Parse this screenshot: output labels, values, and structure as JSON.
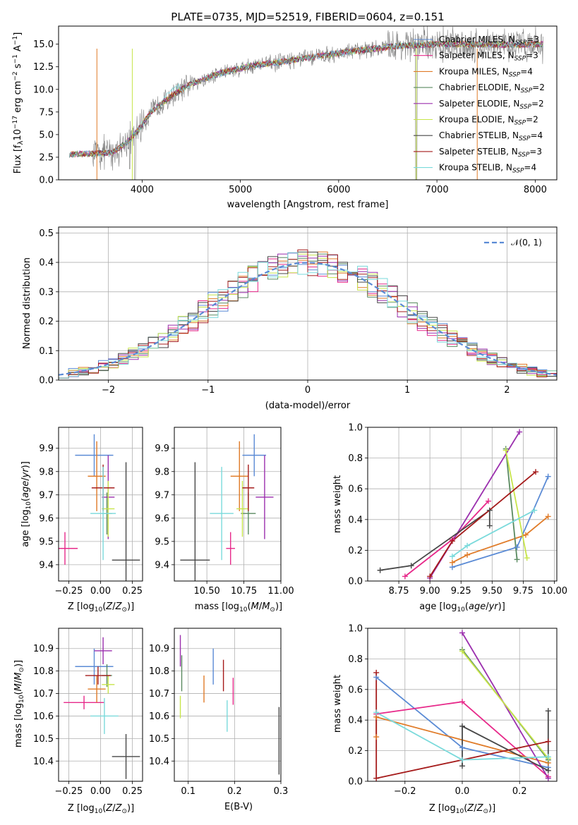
{
  "colors": {
    "Chabrier MILES": "#5b8bd5",
    "Salpeter MILES": "#e7298a",
    "Kroupa MILES": "#e07b28",
    "Chabrier ELODIE": "#5a8a60",
    "Salpeter ELODIE": "#9b2fae",
    "Kroupa ELODIE": "#c7e54a",
    "Chabrier STELIB": "#474747",
    "Salpeter STELIB": "#a51b1b",
    "Kroupa STELIB": "#7adadb",
    "normal": "#5b8bd5"
  },
  "chart_data": [
    {
      "id": "spectrum",
      "type": "line",
      "title": "PLATE=0735, MJD=52519, FIBERID=0604, z=0.151",
      "xlabel": "wavelength [Angstrom, rest frame]",
      "ylabel": "Flux [f_λ 10⁻¹⁷ erg cm⁻² s⁻¹ A⁻¹]",
      "xlim": [
        3150,
        8220
      ],
      "ylim": [
        0,
        17
      ],
      "xticks": [
        "4000",
        "5000",
        "6000",
        "7000",
        "8000"
      ],
      "yticks": [
        "0.0",
        "2.5",
        "5.0",
        "7.5",
        "10.0",
        "12.5",
        "15.0"
      ],
      "legend": [
        {
          "name": "Chabrier MILES, N_SSP=3"
        },
        {
          "name": "Salpeter MILES, N_SSP=3"
        },
        {
          "name": "Kroupa MILES, N_SSP=4"
        },
        {
          "name": "Chabrier ELODIE, N_SSP=2"
        },
        {
          "name": "Salpeter ELODIE, N_SSP=2"
        },
        {
          "name": "Kroupa ELODIE, N_SSP=2"
        },
        {
          "name": "Chabrier STELIB, N_SSP=4"
        },
        {
          "name": "Salpeter STELIB, N_SSP=3"
        },
        {
          "name": "Kroupa STELIB, N_SSP=4"
        }
      ],
      "legend_items": [
        {
          "label": "Chabrier MILES, N",
          "sub": "SSP",
          "n": "=3"
        },
        {
          "label": "Salpeter MILES, N",
          "sub": "SSP",
          "n": "=3"
        },
        {
          "label": "Kroupa MILES, N",
          "sub": "SSP",
          "n": "=4"
        },
        {
          "label": "Chabrier ELODIE, N",
          "sub": "SSP",
          "n": "=2"
        },
        {
          "label": "Salpeter ELODIE, N",
          "sub": "SSP",
          "n": "=2"
        },
        {
          "label": "Kroupa ELODIE, N",
          "sub": "SSP",
          "n": "=2"
        },
        {
          "label": "Chabrier STELIB, N",
          "sub": "SSP",
          "n": "=4"
        },
        {
          "label": "Salpeter STELIB, N",
          "sub": "SSP",
          "n": "=3"
        },
        {
          "label": "Kroupa STELIB, N",
          "sub": "SSP",
          "n": "=4"
        }
      ],
      "continuum": [
        [
          3250,
          2.8
        ],
        [
          3500,
          2.9
        ],
        [
          3700,
          3.0
        ],
        [
          3850,
          4.2
        ],
        [
          3950,
          5.4
        ],
        [
          4100,
          7.6
        ],
        [
          4300,
          9.3
        ],
        [
          4500,
          10.6
        ],
        [
          4800,
          11.8
        ],
        [
          5100,
          12.6
        ],
        [
          5400,
          13.0
        ],
        [
          5800,
          13.7
        ],
        [
          6200,
          14.3
        ],
        [
          6600,
          14.8
        ],
        [
          7000,
          15.0
        ],
        [
          7300,
          15.0
        ],
        [
          7700,
          14.9
        ],
        [
          8000,
          15.0
        ]
      ]
    },
    {
      "id": "residuals",
      "type": "histogram",
      "xlabel": "(data-model)/error",
      "ylabel": "Normed distribution",
      "xlim": [
        -2.5,
        2.5
      ],
      "ylim": [
        0,
        0.52
      ],
      "xticks": [
        "-2",
        "-1",
        "0",
        "1",
        "2"
      ],
      "yticks": [
        "0.0",
        "0.1",
        "0.2",
        "0.3",
        "0.4",
        "0.5"
      ],
      "legend": "𝒩(0, 1)"
    },
    {
      "id": "age_vs_Z",
      "type": "scatter",
      "xlabel": "Z [log10(Z/Z⊙)]",
      "ylabel": "age [log10(age/yr)]",
      "xlim": [
        -0.33,
        0.33
      ],
      "ylim": [
        9.33,
        9.99
      ],
      "xticks": [
        "-0.25",
        "0.00",
        "0.25"
      ],
      "yticks": [
        "9.4",
        "9.5",
        "9.6",
        "9.7",
        "9.8",
        "9.9"
      ],
      "points": [
        {
          "series": "Chabrier MILES",
          "x": -0.05,
          "y": 9.87,
          "xerr": 0.15,
          "yerr": 0.09
        },
        {
          "series": "Salpeter MILES",
          "x": -0.28,
          "y": 9.47,
          "xerr": 0.1,
          "yerr": 0.07
        },
        {
          "series": "Kroupa MILES",
          "x": -0.03,
          "y": 9.78,
          "xerr": 0.07,
          "yerr": 0.15
        },
        {
          "series": "Chabrier ELODIE",
          "x": 0.05,
          "y": 9.62,
          "xerr": 0.04,
          "yerr": 0.09
        },
        {
          "series": "Salpeter ELODIE",
          "x": 0.06,
          "y": 9.69,
          "xerr": 0.05,
          "yerr": 0.18
        },
        {
          "series": "Kroupa ELODIE",
          "x": 0.06,
          "y": 9.64,
          "xerr": 0.05,
          "yerr": 0.12
        },
        {
          "series": "Chabrier STELIB",
          "x": 0.2,
          "y": 9.42,
          "xerr": 0.11,
          "yerr": 0.42
        },
        {
          "series": "Salpeter STELIB",
          "x": 0.02,
          "y": 9.73,
          "xerr": 0.09,
          "yerr": 0.1
        },
        {
          "series": "Kroupa STELIB",
          "x": 0.02,
          "y": 9.62,
          "xerr": 0.1,
          "yerr": 0.2
        }
      ]
    },
    {
      "id": "age_vs_mass",
      "type": "scatter",
      "xlabel": "mass [log10(M/M⊙)]",
      "ylabel": "",
      "xlim": [
        10.28,
        11.0
      ],
      "ylim": [
        9.33,
        9.99
      ],
      "xticks": [
        "10.50",
        "10.75",
        "11.00"
      ],
      "yticks": [
        "9.4",
        "9.5",
        "9.6",
        "9.7",
        "9.8",
        "9.9"
      ],
      "points": [
        {
          "series": "Chabrier MILES",
          "x": 10.82,
          "y": 9.87,
          "xerr": 0.08,
          "yerr": 0.09
        },
        {
          "series": "Salpeter MILES",
          "x": 10.66,
          "y": 9.47,
          "xerr": 0.03,
          "yerr": 0.07
        },
        {
          "series": "Kroupa MILES",
          "x": 10.72,
          "y": 9.78,
          "xerr": 0.06,
          "yerr": 0.15
        },
        {
          "series": "Chabrier ELODIE",
          "x": 10.78,
          "y": 9.62,
          "xerr": 0.05,
          "yerr": 0.09
        },
        {
          "series": "Salpeter ELODIE",
          "x": 10.89,
          "y": 9.69,
          "xerr": 0.06,
          "yerr": 0.18
        },
        {
          "series": "Kroupa ELODIE",
          "x": 10.74,
          "y": 9.64,
          "xerr": 0.04,
          "yerr": 0.12
        },
        {
          "series": "Chabrier STELIB",
          "x": 10.42,
          "y": 9.42,
          "xerr": 0.1,
          "yerr": 0.42
        },
        {
          "series": "Salpeter STELIB",
          "x": 10.78,
          "y": 9.73,
          "xerr": 0.04,
          "yerr": 0.1
        },
        {
          "series": "Kroupa STELIB",
          "x": 10.6,
          "y": 9.62,
          "xerr": 0.08,
          "yerr": 0.2
        }
      ]
    },
    {
      "id": "weight_vs_age",
      "type": "line",
      "xlabel": "age [log10(age/yr)]",
      "ylabel": "mass weight",
      "xlim": [
        8.5,
        10.02
      ],
      "ylim": [
        0,
        1.0
      ],
      "xticks": [
        "8.75",
        "9.00",
        "9.25",
        "9.50",
        "9.75",
        "10.00"
      ],
      "yticks": [
        "0.0",
        "0.2",
        "0.4",
        "0.6",
        "0.8",
        "1.0"
      ],
      "series": [
        {
          "name": "Chabrier MILES",
          "x": [
            9.18,
            9.7,
            9.95
          ],
          "y": [
            0.09,
            0.22,
            0.68
          ]
        },
        {
          "name": "Salpeter MILES",
          "x": [
            8.8,
            9.18,
            9.47
          ],
          "y": [
            0.03,
            0.27,
            0.52
          ]
        },
        {
          "name": "Kroupa MILES",
          "x": [
            9.18,
            9.3,
            9.77,
            9.95
          ],
          "y": [
            0.12,
            0.17,
            0.3,
            0.42
          ]
        },
        {
          "name": "Chabrier ELODIE",
          "x": [
            9.61,
            9.7
          ],
          "y": [
            0.86,
            0.14
          ]
        },
        {
          "name": "Salpeter ELODIE",
          "x": [
            9.0,
            9.72
          ],
          "y": [
            0.02,
            0.97
          ]
        },
        {
          "name": "Kroupa ELODIE",
          "x": [
            9.61,
            9.78
          ],
          "y": [
            0.85,
            0.15
          ]
        },
        {
          "name": "Chabrier STELIB",
          "x": [
            8.6,
            8.85,
            9.48,
            9.48
          ],
          "y": [
            0.07,
            0.1,
            0.46,
            0.36
          ]
        },
        {
          "name": "Salpeter STELIB",
          "x": [
            9.0,
            9.18,
            9.85
          ],
          "y": [
            0.03,
            0.26,
            0.71
          ]
        },
        {
          "name": "Kroupa STELIB",
          "x": [
            9.18,
            9.3,
            9.84
          ],
          "y": [
            0.16,
            0.23,
            0.46
          ]
        }
      ]
    },
    {
      "id": "mass_vs_Z",
      "type": "scatter",
      "xlabel": "Z [log10(Z/Z⊙)]",
      "ylabel": "mass [log10(M/M⊙)]",
      "xlim": [
        -0.33,
        0.33
      ],
      "ylim": [
        10.31,
        10.99
      ],
      "xticks": [
        "-0.25",
        "0.00",
        "0.25"
      ],
      "yticks": [
        "10.4",
        "10.5",
        "10.6",
        "10.7",
        "10.8",
        "10.9"
      ],
      "points": [
        {
          "series": "Chabrier MILES",
          "x": -0.05,
          "y": 10.82,
          "xerr": 0.15,
          "yerr": 0.08
        },
        {
          "series": "Salpeter MILES",
          "x": -0.13,
          "y": 10.66,
          "xerr": 0.16,
          "yerr": 0.03
        },
        {
          "series": "Kroupa MILES",
          "x": -0.03,
          "y": 10.72,
          "xerr": 0.07,
          "yerr": 0.06
        },
        {
          "series": "Chabrier ELODIE",
          "x": 0.05,
          "y": 10.78,
          "xerr": 0.04,
          "yerr": 0.05
        },
        {
          "series": "Salpeter ELODIE",
          "x": 0.02,
          "y": 10.89,
          "xerr": 0.07,
          "yerr": 0.06
        },
        {
          "series": "Kroupa ELODIE",
          "x": 0.06,
          "y": 10.74,
          "xerr": 0.05,
          "yerr": 0.04
        },
        {
          "series": "Chabrier STELIB",
          "x": 0.2,
          "y": 10.42,
          "xerr": 0.11,
          "yerr": 0.1
        },
        {
          "series": "Salpeter STELIB",
          "x": -0.02,
          "y": 10.78,
          "xerr": 0.1,
          "yerr": 0.04
        },
        {
          "series": "Kroupa STELIB",
          "x": 0.03,
          "y": 10.6,
          "xerr": 0.11,
          "yerr": 0.08
        }
      ]
    },
    {
      "id": "mass_vs_ebv",
      "type": "scatter",
      "xlabel": "E(B-V)",
      "ylabel": "",
      "xlim": [
        0.07,
        0.3
      ],
      "ylim": [
        10.31,
        10.99
      ],
      "xticks": [
        "0.1",
        "0.2",
        "0.3"
      ],
      "yticks": [
        "10.4",
        "10.5",
        "10.6",
        "10.7",
        "10.8",
        "10.9"
      ],
      "points": [
        {
          "series": "Chabrier MILES",
          "x": 0.154,
          "y": 10.82,
          "yerr": 0.08
        },
        {
          "series": "Salpeter MILES",
          "x": 0.197,
          "y": 10.71,
          "yerr": 0.06
        },
        {
          "series": "Kroupa MILES",
          "x": 0.134,
          "y": 10.72,
          "yerr": 0.06
        },
        {
          "series": "Chabrier ELODIE",
          "x": 0.086,
          "y": 10.79,
          "yerr": 0.08
        },
        {
          "series": "Salpeter ELODIE",
          "x": 0.083,
          "y": 10.89,
          "yerr": 0.07
        },
        {
          "series": "Kroupa ELODIE",
          "x": 0.083,
          "y": 10.64,
          "yerr": 0.05
        },
        {
          "series": "Chabrier STELIB",
          "x": 0.296,
          "y": 10.49,
          "yerr": 0.15
        },
        {
          "series": "Salpeter STELIB",
          "x": 0.176,
          "y": 10.78,
          "yerr": 0.07
        },
        {
          "series": "Kroupa STELIB",
          "x": 0.184,
          "y": 10.6,
          "yerr": 0.07
        }
      ]
    },
    {
      "id": "weight_vs_Z",
      "type": "line",
      "xlabel": "Z [log10(Z/Z⊙)]",
      "ylabel": "mass weight",
      "xlim": [
        -0.33,
        0.33
      ],
      "ylim": [
        0,
        1.0
      ],
      "xticks": [
        "-0.2",
        "0.0",
        "0.2"
      ],
      "yticks": [
        "0.0",
        "0.2",
        "0.4",
        "0.6",
        "0.8",
        "1.0"
      ],
      "series": [
        {
          "name": "Chabrier MILES",
          "x": [
            -0.3,
            0.0,
            0.3
          ],
          "y": [
            0.68,
            0.22,
            0.09
          ]
        },
        {
          "name": "Salpeter MILES",
          "x": [
            -0.3,
            0.0,
            0.3
          ],
          "y": [
            0.44,
            0.52,
            0.03
          ]
        },
        {
          "name": "Kroupa MILES",
          "x": [
            -0.3,
            -0.3,
            0.3
          ],
          "y": [
            0.29,
            0.42,
            0.12
          ]
        },
        {
          "name": "Chabrier ELODIE",
          "x": [
            0.0,
            0.3
          ],
          "y": [
            0.86,
            0.14
          ]
        },
        {
          "name": "Salpeter ELODIE",
          "x": [
            0.0,
            0.3
          ],
          "y": [
            0.97,
            0.02
          ]
        },
        {
          "name": "Kroupa ELODIE",
          "x": [
            0.0,
            0.3
          ],
          "y": [
            0.85,
            0.15
          ]
        },
        {
          "name": "Chabrier STELIB",
          "x": [
            0.0,
            0.0,
            0.3,
            0.3
          ],
          "y": [
            0.1,
            0.36,
            0.07,
            0.46
          ]
        },
        {
          "name": "Salpeter STELIB",
          "x": [
            -0.3,
            -0.3,
            0.3
          ],
          "y": [
            0.71,
            0.02,
            0.26
          ]
        },
        {
          "name": "Kroupa STELIB",
          "x": [
            -0.3,
            0.0,
            0.3
          ],
          "y": [
            0.45,
            0.14,
            0.16
          ]
        }
      ]
    }
  ]
}
